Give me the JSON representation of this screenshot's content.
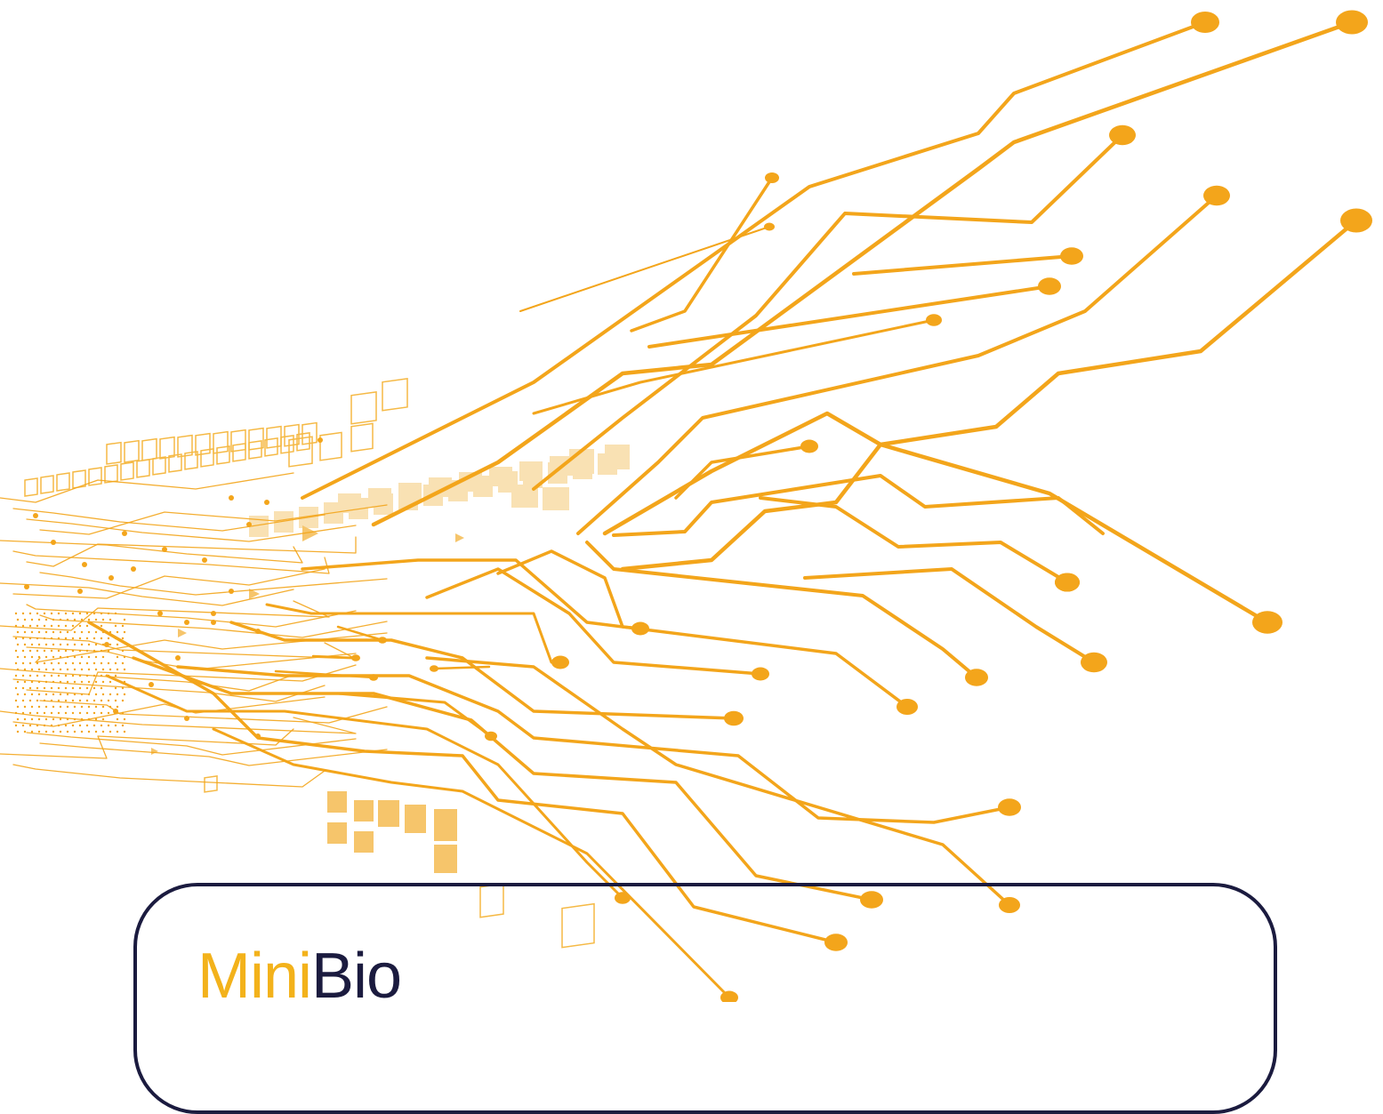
{
  "theme": {
    "accent": "#f3a51b",
    "accent_light": "#f7c870",
    "dark": "#1b1b3f",
    "background": "#ffffff"
  },
  "decoration": {
    "name": "circuit-trace-illustration"
  },
  "logo": {
    "part1": "Mini",
    "part2": "Bio",
    "part1_color": "#f3b21b",
    "part2_color": "#1b1b3f"
  }
}
